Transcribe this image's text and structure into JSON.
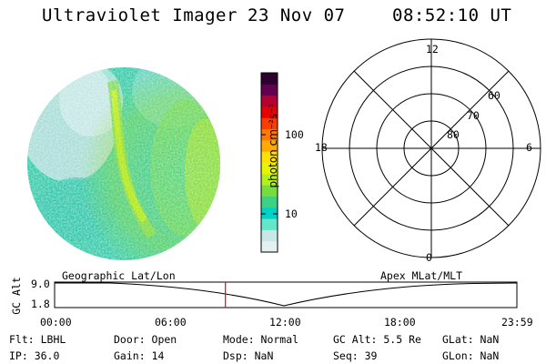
{
  "header": {
    "instrument": "Ultraviolet Imager",
    "date": "23 Nov 07",
    "time": "08:52:10 UT"
  },
  "colorbar": {
    "unit_label": "photon cm⁻²s⁻¹",
    "tick_100": "100",
    "tick_10": "10",
    "colors": [
      "#e6f0f0",
      "#c8e8e8",
      "#64e6c8",
      "#00d2c8",
      "#3cd282",
      "#78dc3c",
      "#b4f01e",
      "#e6f500",
      "#ffe100",
      "#ffaa00",
      "#ff7800",
      "#ff3c00",
      "#e60000",
      "#b40032",
      "#640050",
      "#2d002d"
    ]
  },
  "polar_grid": {
    "mlt_labels": [
      "12",
      "18",
      "6",
      "0"
    ],
    "lat_labels": [
      "60",
      "70",
      "80"
    ]
  },
  "timeline": {
    "left_axis_label": "GC Alt",
    "y_top": "9.0",
    "y_bottom": "1.8",
    "left_title": "Geographic Lat/Lon",
    "right_title": "Apex MLat/MLT",
    "ticks": [
      "00:00",
      "06:00",
      "12:00",
      "18:00",
      "23:59"
    ],
    "current_time_fraction": 0.3695,
    "line_color": "#d01010"
  },
  "status": {
    "flt": "Flt: LBHL",
    "ip": "IP: 36.0",
    "door": "Door: Open",
    "gain": "Gain: 14",
    "mode": "Mode: Normal",
    "dsp": "Dsp:      NaN",
    "gcalt": "GC Alt: 5.5 Re",
    "seq": "Seq: 39",
    "glat": "GLat:     NaN",
    "glon": "GLon:    NaN"
  }
}
